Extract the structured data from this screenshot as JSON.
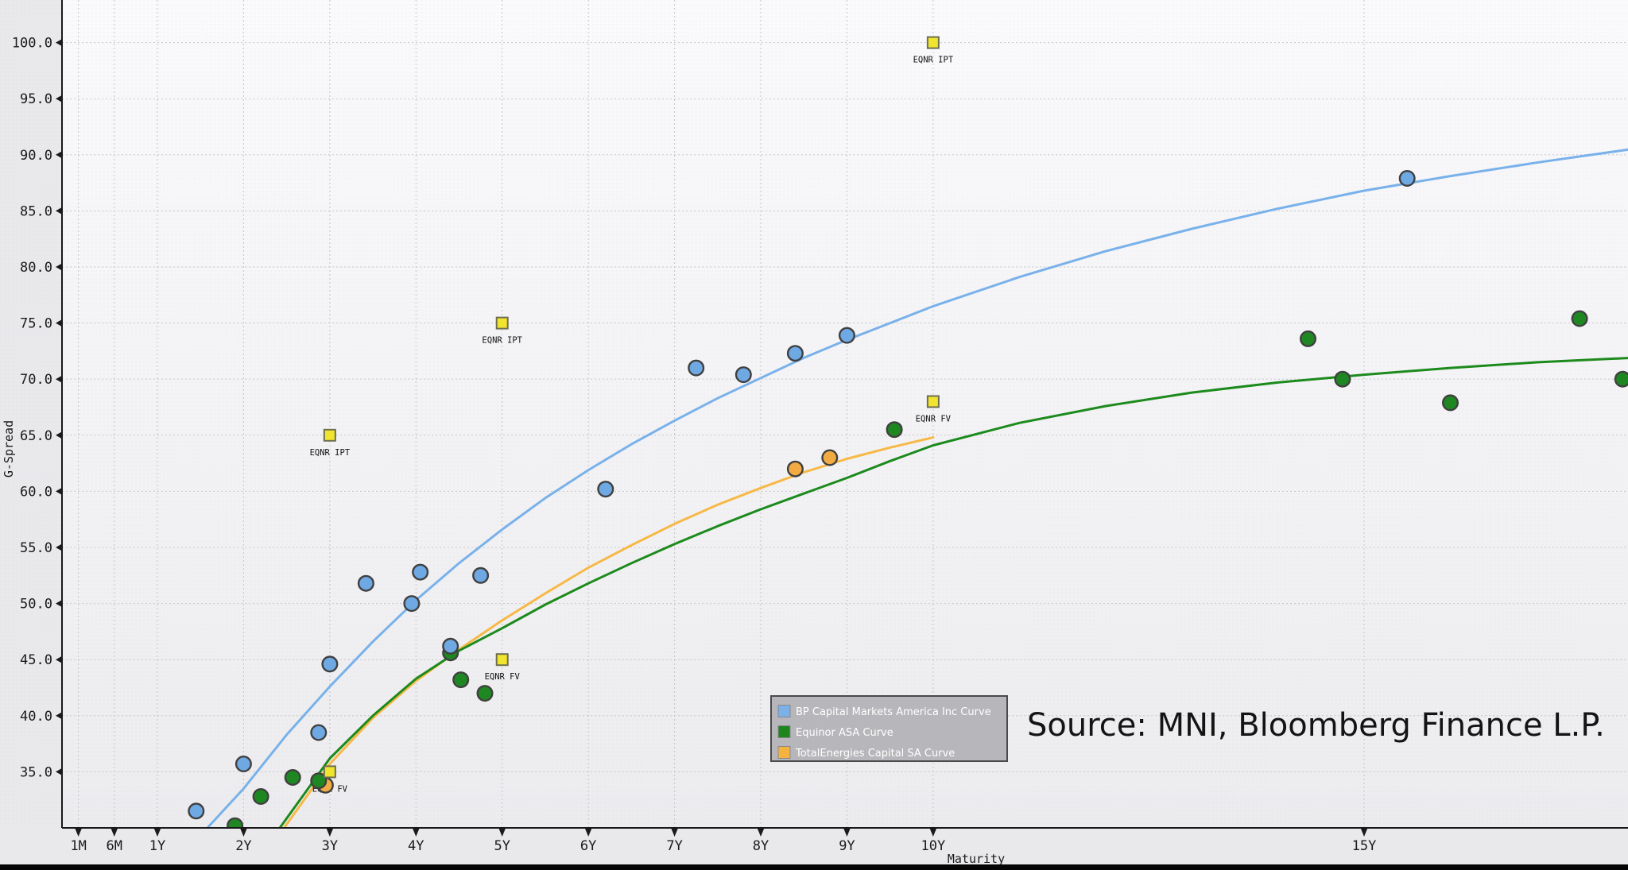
{
  "chart_data": {
    "type": "scatter",
    "title": "",
    "xlabel": "Maturity",
    "ylabel": "G-Spread",
    "x_unit": "years",
    "grid": "dotted",
    "ylim": [
      30,
      103.8
    ],
    "xlim_years": [
      -0.1,
      18.06
    ],
    "x_ticks": [
      {
        "label": "1M",
        "years": 0.0833
      },
      {
        "label": "6M",
        "years": 0.5
      },
      {
        "label": "1Y",
        "years": 1
      },
      {
        "label": "2Y",
        "years": 2
      },
      {
        "label": "3Y",
        "years": 3
      },
      {
        "label": "4Y",
        "years": 4
      },
      {
        "label": "5Y",
        "years": 5
      },
      {
        "label": "6Y",
        "years": 6
      },
      {
        "label": "7Y",
        "years": 7
      },
      {
        "label": "8Y",
        "years": 8
      },
      {
        "label": "9Y",
        "years": 9
      },
      {
        "label": "10Y",
        "years": 10
      },
      {
        "label": "15Y",
        "years": 15
      }
    ],
    "y_ticks": [
      {
        "label": "35.0",
        "value": 35
      },
      {
        "label": "40.0",
        "value": 40
      },
      {
        "label": "45.0",
        "value": 45
      },
      {
        "label": "50.0",
        "value": 50
      },
      {
        "label": "55.0",
        "value": 55
      },
      {
        "label": "60.0",
        "value": 60
      },
      {
        "label": "65.0",
        "value": 65
      },
      {
        "label": "70.0",
        "value": 70
      },
      {
        "label": "75.0",
        "value": 75
      },
      {
        "label": "80.0",
        "value": 80
      },
      {
        "label": "85.0",
        "value": 85
      },
      {
        "label": "90.0",
        "value": 90
      },
      {
        "label": "95.0",
        "value": 95
      },
      {
        "label": "100.0",
        "value": 100
      }
    ],
    "series": [
      {
        "name": "TotalEnergies Capital SA",
        "marker": "circle",
        "color": "#f2ab43",
        "points": [
          [
            2.95,
            33.8
          ],
          [
            8.4,
            62.0
          ],
          [
            8.8,
            63.0
          ]
        ]
      },
      {
        "name": "Equinor ASA",
        "marker": "circle",
        "color": "#1e8722",
        "points": [
          [
            1.9,
            30.2
          ],
          [
            2.2,
            32.8
          ],
          [
            2.57,
            34.5
          ],
          [
            2.87,
            34.2
          ],
          [
            4.4,
            45.6
          ],
          [
            4.52,
            43.2
          ],
          [
            4.8,
            42.0
          ],
          [
            9.55,
            65.5
          ],
          [
            14.35,
            73.6
          ],
          [
            14.75,
            70.0
          ],
          [
            16.0,
            67.9
          ],
          [
            17.5,
            75.4
          ],
          [
            18.0,
            70.0
          ]
        ]
      },
      {
        "name": "BP Capital Markets America Inc",
        "marker": "circle",
        "color": "#6fa9e3",
        "points": [
          [
            1.45,
            31.5
          ],
          [
            2.0,
            35.7
          ],
          [
            2.87,
            38.5
          ],
          [
            3.0,
            44.6
          ],
          [
            3.42,
            51.8
          ],
          [
            3.95,
            50.0
          ],
          [
            4.05,
            52.8
          ],
          [
            4.4,
            46.2
          ],
          [
            4.75,
            52.5
          ],
          [
            6.2,
            60.2
          ],
          [
            7.25,
            71.0
          ],
          [
            7.8,
            70.4
          ],
          [
            8.4,
            72.3
          ],
          [
            9.0,
            73.9
          ],
          [
            15.5,
            87.9
          ]
        ]
      }
    ],
    "marked_levels": [
      {
        "name": "EQNR IPT",
        "marker": "square",
        "color": "#f1e42e",
        "points": [
          {
            "x": 3.0,
            "y": 65.0,
            "label": "EQNR IPT"
          },
          {
            "x": 5.0,
            "y": 75.0,
            "label": "EQNR IPT"
          },
          {
            "x": 10.0,
            "y": 100.0,
            "label": "EQNR IPT"
          }
        ]
      },
      {
        "name": "EQNR FV",
        "marker": "square",
        "color": "#f1e42e",
        "points": [
          {
            "x": 3.0,
            "y": 35.0,
            "label": "EQNR FV"
          },
          {
            "x": 5.0,
            "y": 45.0,
            "label": "EQNR FV"
          },
          {
            "x": 10.0,
            "y": 68.0,
            "label": "EQNR FV"
          }
        ]
      }
    ],
    "curves": [
      {
        "name": "TotalEnergies Capital SA Curve",
        "color": "#f7b846",
        "points": [
          [
            2.47,
            30
          ],
          [
            3,
            35.7
          ],
          [
            3.5,
            39.8
          ],
          [
            4,
            43.1
          ],
          [
            4.5,
            45.9
          ],
          [
            5,
            48.5
          ],
          [
            5.5,
            50.9
          ],
          [
            6,
            53.2
          ],
          [
            6.5,
            55.2
          ],
          [
            7,
            57.1
          ],
          [
            7.5,
            58.8
          ],
          [
            8,
            60.3
          ],
          [
            8.5,
            61.7
          ],
          [
            9,
            62.9
          ],
          [
            9.5,
            63.9
          ],
          [
            10,
            64.8
          ]
        ]
      },
      {
        "name": "Equinor ASA Curve",
        "color": "#1c8a1c",
        "points": [
          [
            2.42,
            30
          ],
          [
            3,
            36.2
          ],
          [
            3.5,
            40.0
          ],
          [
            4,
            43.3
          ],
          [
            4.5,
            45.8
          ],
          [
            5,
            47.8
          ],
          [
            5.5,
            49.9
          ],
          [
            6,
            51.8
          ],
          [
            6.5,
            53.6
          ],
          [
            7,
            55.3
          ],
          [
            7.5,
            56.9
          ],
          [
            8,
            58.4
          ],
          [
            8.5,
            59.8
          ],
          [
            9,
            61.2
          ],
          [
            9.5,
            62.7
          ],
          [
            10,
            64.1
          ],
          [
            11,
            66.1
          ],
          [
            12,
            67.6
          ],
          [
            13,
            68.8
          ],
          [
            14,
            69.7
          ],
          [
            15,
            70.4
          ],
          [
            16,
            71.0
          ],
          [
            17,
            71.5
          ],
          [
            18.1,
            71.9
          ]
        ]
      },
      {
        "name": "BP Capital Markets America Inc Curve",
        "color": "#79b1ea",
        "points": [
          [
            1.58,
            30
          ],
          [
            2,
            33.5
          ],
          [
            2.5,
            38.3
          ],
          [
            3,
            42.6
          ],
          [
            3.5,
            46.6
          ],
          [
            4,
            50.3
          ],
          [
            4.5,
            53.6
          ],
          [
            5,
            56.6
          ],
          [
            5.5,
            59.4
          ],
          [
            6,
            61.9
          ],
          [
            6.5,
            64.2
          ],
          [
            7,
            66.3
          ],
          [
            7.5,
            68.3
          ],
          [
            8,
            70.1
          ],
          [
            8.5,
            71.9
          ],
          [
            9,
            73.5
          ],
          [
            9.5,
            75.0
          ],
          [
            10,
            76.5
          ],
          [
            11,
            79.1
          ],
          [
            12,
            81.4
          ],
          [
            13,
            83.4
          ],
          [
            14,
            85.2
          ],
          [
            15,
            86.8
          ],
          [
            16,
            88.1
          ],
          [
            17,
            89.3
          ],
          [
            18.1,
            90.5
          ]
        ]
      }
    ],
    "legend": {
      "position": "bottom-right",
      "background": "#b7b7bb",
      "border": "#4a4a4a",
      "entries": [
        {
          "label": "BP Capital Markets America Inc Curve",
          "color": "#7cb0e8"
        },
        {
          "label": "Equinor ASA Curve",
          "color": "#1d851d"
        },
        {
          "label": "TotalEnergies Capital SA Curve",
          "color": "#f4b33f"
        }
      ]
    },
    "source_note": "Source: MNI, Bloomberg Finance L.P."
  },
  "colors": {
    "margin_bg": "#e9e9ec",
    "plot_bg_top": "#fafafc",
    "plot_bg_bottom": "#ececef",
    "grid": "#c6c6cb",
    "axis": "#1a1a1a",
    "marker_outline": "#404040",
    "square_border": "#6e6e52",
    "footer_bar": "#050505"
  }
}
